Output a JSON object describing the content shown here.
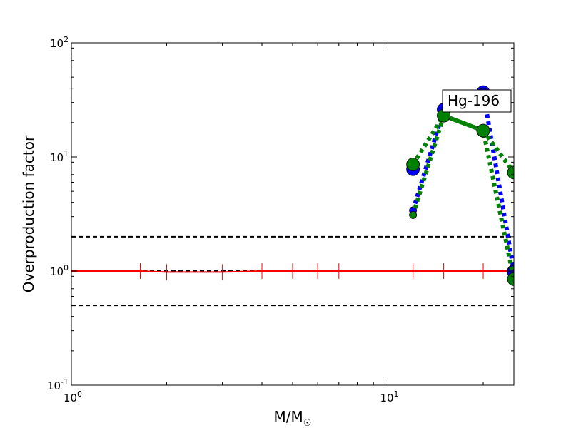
{
  "chart_data": {
    "type": "line",
    "title": "",
    "xlabel": "M/M",
    "xlabel_sub": "☉",
    "ylabel": "Overproduction factor",
    "xscale": "log",
    "yscale": "log",
    "xlim": [
      1,
      25
    ],
    "ylim": [
      0.1,
      100
    ],
    "grid": false,
    "legend": "none",
    "x_ticks": [
      {
        "base": "10",
        "exp": "0",
        "value": 1
      },
      {
        "base": "10",
        "exp": "1",
        "value": 10
      }
    ],
    "y_ticks": [
      {
        "base": "10",
        "exp": "-1",
        "value": 0.1
      },
      {
        "base": "10",
        "exp": "0",
        "value": 1
      },
      {
        "base": "10",
        "exp": "1",
        "value": 10
      },
      {
        "base": "10",
        "exp": "2",
        "value": 100
      }
    ],
    "annotation": "Hg-196",
    "reference_lines": [
      {
        "y": 2,
        "color": "#000000",
        "style": "dashed"
      },
      {
        "y": 1,
        "color": "#000000",
        "style": "dashed"
      },
      {
        "y": 0.5,
        "color": "#000000",
        "style": "dashed"
      }
    ],
    "series": [
      {
        "color": "#ff0000",
        "style": "solid",
        "x": [
          1,
          1.65,
          2,
          3,
          4,
          5,
          6,
          7,
          10,
          12,
          15,
          20,
          25
        ],
        "y": [
          1.0,
          1.0,
          0.98,
          0.98,
          1.0,
          1.0,
          1.0,
          1.0,
          1.0,
          1.0,
          1.0,
          1.0,
          1.0
        ],
        "errorbar_x": [
          1.65,
          2,
          3,
          4,
          5,
          6,
          7,
          12,
          15,
          20,
          25
        ]
      },
      {
        "color": "#0000ff",
        "style": "dotted",
        "marker": "circle",
        "x": [
          12,
          15,
          20,
          25
        ],
        "y": [
          3.4,
          26,
          37,
          1.0
        ]
      },
      {
        "color": "#0000ff",
        "style": "none",
        "marker": "circle",
        "x": [
          12,
          15,
          20,
          25
        ],
        "y": [
          7.8,
          26,
          35,
          0.98
        ]
      },
      {
        "color": "#008000",
        "style": "dotted",
        "marker": "circle",
        "x": [
          12,
          15,
          20,
          25
        ],
        "y": [
          3.1,
          23,
          17,
          0.85
        ]
      },
      {
        "color": "#008000",
        "style": "dotted",
        "marker": "circle",
        "x": [
          12,
          15,
          20,
          25
        ],
        "y": [
          8.6,
          23,
          17,
          7.3
        ]
      }
    ]
  }
}
